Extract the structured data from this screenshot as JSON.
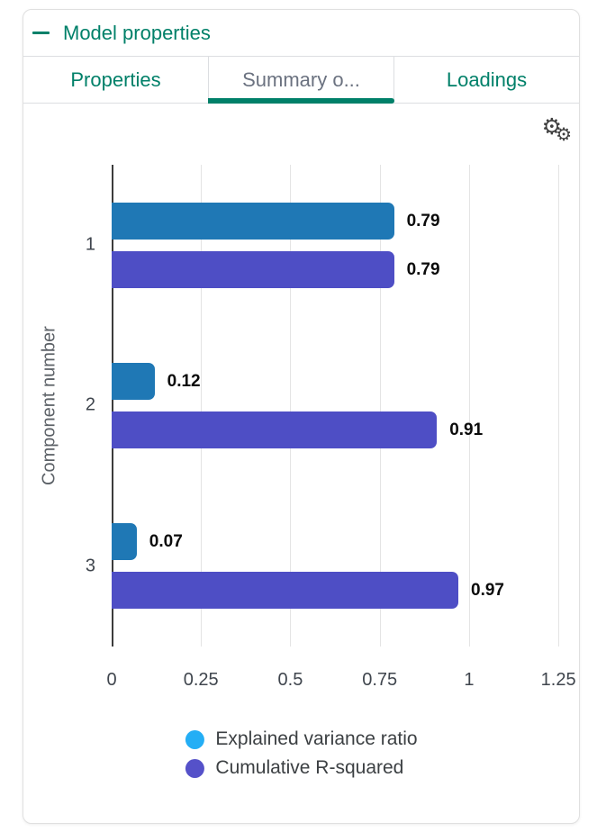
{
  "header": {
    "title": "Model properties"
  },
  "icons": {
    "collapse": "minus-dash",
    "settings": "⚙"
  },
  "tabs": [
    {
      "label": "Properties",
      "active": false
    },
    {
      "label": "Summary o...",
      "active": true
    },
    {
      "label": "Loadings",
      "active": false
    }
  ],
  "chart_data": {
    "type": "bar",
    "orientation": "horizontal",
    "title": "",
    "ylabel": "Component number",
    "xlabel": "",
    "categories": [
      "1",
      "2",
      "3"
    ],
    "series": [
      {
        "name": "Explained variance ratio",
        "bar_color": "#1f78b5",
        "legend_color": "#24aef5",
        "values": [
          0.79,
          0.12,
          0.07
        ],
        "value_labels": [
          "0.79",
          "0.12",
          "0.07"
        ]
      },
      {
        "name": "Cumulative R-squared",
        "bar_color": "#4e4ec5",
        "legend_color": "#5551c9",
        "values": [
          0.79,
          0.91,
          0.97
        ],
        "value_labels": [
          "0.79",
          "0.91",
          "0.97"
        ]
      }
    ],
    "xticks": [
      "0",
      "0.25",
      "0.5",
      "0.75",
      "1",
      "1.25"
    ],
    "xtick_values": [
      0,
      0.25,
      0.5,
      0.75,
      1,
      1.25
    ],
    "xlim": [
      0,
      1.3
    ],
    "grid": true,
    "legend_position": "bottom",
    "value_labels_shown": true
  },
  "colors": {
    "accent_teal": "#008069",
    "axis": "#3c3c3c",
    "gridline": "#e4e4e4",
    "tick_text": "#3f454d",
    "legend_text": "#3c4043",
    "active_tab_text": "#6b7280"
  }
}
